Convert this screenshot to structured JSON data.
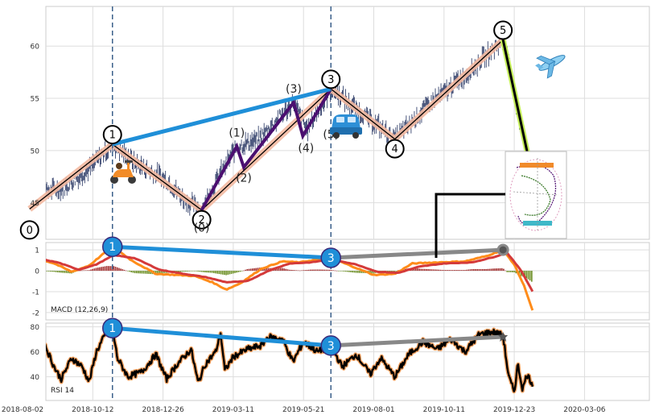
{
  "chart_data": {
    "type": "line",
    "x_ticks": [
      "2018-08-02",
      "2018-10-12",
      "2018-12-26",
      "2019-03-11",
      "2019-05-21",
      "2019-08-01",
      "2019-10-11",
      "2019-12-23",
      "2020-03-06"
    ],
    "price_panel": {
      "y_ticks": [
        45,
        50,
        55,
        60
      ],
      "ylim": [
        41.5,
        63.8
      ],
      "wave_points": [
        {
          "label": "0",
          "x": 0.1,
          "y": 44.4
        },
        {
          "label": "1",
          "x": 1.28,
          "y": 50.6
        },
        {
          "label": "2",
          "x": 2.55,
          "y": 44.3
        },
        {
          "label": "3",
          "x": 4.39,
          "y": 55.9
        },
        {
          "label": "4",
          "x": 5.3,
          "y": 51.1
        },
        {
          "label": "5",
          "x": 6.84,
          "y": 60.6
        }
      ],
      "sub_wave_points": [
        {
          "label": "(0)",
          "x": 2.55,
          "y": 44.3
        },
        {
          "label": "(1)",
          "x": 3.05,
          "y": 50.4
        },
        {
          "label": "(2)",
          "x": 3.15,
          "y": 48.4
        },
        {
          "label": "(3)",
          "x": 3.86,
          "y": 54.6
        },
        {
          "label": "(4)",
          "x": 3.99,
          "y": 51.4
        },
        {
          "label": "(5)",
          "x": 4.39,
          "y": 55.9
        }
      ],
      "wave_5_drop_to": {
        "x": 7.27,
        "y": 47.2
      },
      "divergence_line": {
        "from_label": "1",
        "to_label": "3"
      },
      "vertical_markers_x": [
        1.28,
        4.39
      ],
      "price_series_anchors": [
        {
          "x": 0.0,
          "y": 46.2
        },
        {
          "x": 0.25,
          "y": 45.9
        },
        {
          "x": 0.6,
          "y": 46.5
        },
        {
          "x": 0.95,
          "y": 48.3
        },
        {
          "x": 1.28,
          "y": 50.6
        },
        {
          "x": 1.6,
          "y": 48.8
        },
        {
          "x": 2.05,
          "y": 47.2
        },
        {
          "x": 2.3,
          "y": 45.3
        },
        {
          "x": 2.55,
          "y": 44.3
        },
        {
          "x": 2.8,
          "y": 47.6
        },
        {
          "x": 3.05,
          "y": 50.4
        },
        {
          "x": 3.35,
          "y": 51.0
        },
        {
          "x": 3.86,
          "y": 54.6
        },
        {
          "x": 4.05,
          "y": 52.0
        },
        {
          "x": 4.39,
          "y": 55.9
        },
        {
          "x": 4.75,
          "y": 54.0
        },
        {
          "x": 5.3,
          "y": 51.1
        },
        {
          "x": 5.75,
          "y": 54.2
        },
        {
          "x": 6.35,
          "y": 57.5
        },
        {
          "x": 6.84,
          "y": 60.6
        },
        {
          "x": 6.95,
          "y": 57.5
        },
        {
          "x": 7.05,
          "y": 53.5
        },
        {
          "x": 7.15,
          "y": 51.0
        },
        {
          "x": 7.27,
          "y": 47.2
        }
      ]
    },
    "macd_panel": {
      "label": "MACD (12,26,9)",
      "y_ticks": [
        -2,
        -1,
        0,
        1
      ],
      "ylim": [
        -2.35,
        1.35
      ],
      "macd_anchors": [
        {
          "x": 0.0,
          "y": 0.55
        },
        {
          "x": 0.15,
          "y": 0.65
        },
        {
          "x": 0.45,
          "y": 0.35
        },
        {
          "x": 0.7,
          "y": -0.05
        },
        {
          "x": 0.95,
          "y": 0.25
        },
        {
          "x": 1.2,
          "y": 0.95
        },
        {
          "x": 1.3,
          "y": 1.12
        },
        {
          "x": 1.55,
          "y": 0.5
        },
        {
          "x": 1.9,
          "y": -0.15
        },
        {
          "x": 2.2,
          "y": -0.2
        },
        {
          "x": 2.45,
          "y": -0.25
        },
        {
          "x": 2.7,
          "y": -0.55
        },
        {
          "x": 2.9,
          "y": -0.9
        },
        {
          "x": 3.1,
          "y": -0.6
        },
        {
          "x": 3.4,
          "y": 0.1
        },
        {
          "x": 3.7,
          "y": 0.45
        },
        {
          "x": 3.95,
          "y": 0.4
        },
        {
          "x": 4.2,
          "y": 0.55
        },
        {
          "x": 4.39,
          "y": 0.62
        },
        {
          "x": 4.7,
          "y": 0.2
        },
        {
          "x": 5.0,
          "y": -0.2
        },
        {
          "x": 5.3,
          "y": -0.15
        },
        {
          "x": 5.55,
          "y": 0.35
        },
        {
          "x": 5.9,
          "y": 0.4
        },
        {
          "x": 6.3,
          "y": 0.45
        },
        {
          "x": 6.6,
          "y": 0.7
        },
        {
          "x": 6.84,
          "y": 1.0
        },
        {
          "x": 7.0,
          "y": 0.3
        },
        {
          "x": 7.15,
          "y": -0.8
        },
        {
          "x": 7.27,
          "y": -2.0
        }
      ],
      "signal_anchors": [
        {
          "x": 0.0,
          "y": 0.45
        },
        {
          "x": 0.2,
          "y": 0.6
        },
        {
          "x": 0.5,
          "y": 0.4
        },
        {
          "x": 0.8,
          "y": 0.05
        },
        {
          "x": 1.05,
          "y": 0.3
        },
        {
          "x": 1.3,
          "y": 0.75
        },
        {
          "x": 1.6,
          "y": 0.6
        },
        {
          "x": 1.95,
          "y": 0.05
        },
        {
          "x": 2.3,
          "y": -0.15
        },
        {
          "x": 2.6,
          "y": -0.3
        },
        {
          "x": 2.9,
          "y": -0.55
        },
        {
          "x": 3.2,
          "y": -0.5
        },
        {
          "x": 3.5,
          "y": 0.0
        },
        {
          "x": 3.8,
          "y": 0.35
        },
        {
          "x": 4.1,
          "y": 0.4
        },
        {
          "x": 4.4,
          "y": 0.55
        },
        {
          "x": 4.75,
          "y": 0.3
        },
        {
          "x": 5.05,
          "y": -0.05
        },
        {
          "x": 5.35,
          "y": -0.1
        },
        {
          "x": 5.65,
          "y": 0.2
        },
        {
          "x": 6.0,
          "y": 0.35
        },
        {
          "x": 6.4,
          "y": 0.4
        },
        {
          "x": 6.7,
          "y": 0.65
        },
        {
          "x": 6.9,
          "y": 0.85
        },
        {
          "x": 7.1,
          "y": 0.0
        },
        {
          "x": 7.27,
          "y": -1.05
        }
      ],
      "divergence_line": {
        "from": {
          "label": "1",
          "x": 1.28,
          "y": 1.15
        },
        "to": {
          "label": "3",
          "x": 4.39,
          "y": 0.62
        }
      },
      "extension_to": {
        "x": 6.84,
        "y": 1.0
      }
    },
    "rsi_panel": {
      "label": "RSI 14",
      "y_ticks": [
        40,
        60,
        80
      ],
      "ylim": [
        21,
        83
      ],
      "rsi_anchors": [
        {
          "x": 0.0,
          "y": 72
        },
        {
          "x": 0.05,
          "y": 75
        },
        {
          "x": 0.18,
          "y": 62
        },
        {
          "x": 0.3,
          "y": 68
        },
        {
          "x": 0.45,
          "y": 48
        },
        {
          "x": 0.55,
          "y": 38
        },
        {
          "x": 0.7,
          "y": 55
        },
        {
          "x": 0.85,
          "y": 48
        },
        {
          "x": 0.95,
          "y": 36
        },
        {
          "x": 1.05,
          "y": 60
        },
        {
          "x": 1.2,
          "y": 76
        },
        {
          "x": 1.28,
          "y": 79
        },
        {
          "x": 1.35,
          "y": 55
        },
        {
          "x": 1.5,
          "y": 40
        },
        {
          "x": 1.7,
          "y": 44
        },
        {
          "x": 1.9,
          "y": 58
        },
        {
          "x": 2.05,
          "y": 38
        },
        {
          "x": 2.2,
          "y": 50
        },
        {
          "x": 2.4,
          "y": 62
        },
        {
          "x": 2.5,
          "y": 35
        },
        {
          "x": 2.6,
          "y": 50
        },
        {
          "x": 2.75,
          "y": 60
        },
        {
          "x": 2.82,
          "y": 75
        },
        {
          "x": 2.88,
          "y": 45
        },
        {
          "x": 3.0,
          "y": 56
        },
        {
          "x": 3.2,
          "y": 62
        },
        {
          "x": 3.4,
          "y": 65
        },
        {
          "x": 3.5,
          "y": 72
        },
        {
          "x": 3.7,
          "y": 70
        },
        {
          "x": 3.85,
          "y": 52
        },
        {
          "x": 4.0,
          "y": 68
        },
        {
          "x": 4.2,
          "y": 60
        },
        {
          "x": 4.39,
          "y": 65
        },
        {
          "x": 4.55,
          "y": 48
        },
        {
          "x": 4.75,
          "y": 58
        },
        {
          "x": 4.95,
          "y": 42
        },
        {
          "x": 5.1,
          "y": 55
        },
        {
          "x": 5.3,
          "y": 40
        },
        {
          "x": 5.5,
          "y": 58
        },
        {
          "x": 5.7,
          "y": 68
        },
        {
          "x": 5.9,
          "y": 62
        },
        {
          "x": 6.1,
          "y": 70
        },
        {
          "x": 6.3,
          "y": 60
        },
        {
          "x": 6.5,
          "y": 74
        },
        {
          "x": 6.7,
          "y": 76
        },
        {
          "x": 6.84,
          "y": 73
        },
        {
          "x": 6.92,
          "y": 40
        },
        {
          "x": 7.0,
          "y": 28
        },
        {
          "x": 7.05,
          "y": 50
        },
        {
          "x": 7.12,
          "y": 30
        },
        {
          "x": 7.18,
          "y": 42
        },
        {
          "x": 7.27,
          "y": 33
        }
      ],
      "divergence_line": {
        "from": {
          "label": "1",
          "x": 1.28,
          "y": 79
        },
        "to": {
          "label": "3",
          "x": 4.39,
          "y": 65
        }
      },
      "extension_to": {
        "x": 6.84,
        "y": 72
      }
    }
  },
  "colors": {
    "grid": "#dddddd",
    "axis_text": "#333333",
    "price": "#1e2d5c",
    "wave_shadow": "#f3b9a1",
    "wave_line": "#000000",
    "sub_wave": "#4b0f70",
    "divergence": "#1f8fd8",
    "extension": "#888888",
    "macd": "#ff8c1a",
    "signal": "#d43a3a",
    "hist_pos": "#a23030",
    "hist_neg": "#6b8e23",
    "rsi": "#000000",
    "rsi_glow": "#f4a261",
    "v_marker": "#3a5f8a",
    "wave5_drop": "#c5ef5a"
  },
  "icons": [
    "scooter-icon",
    "car-icon",
    "airplane-icon",
    "ring-chart-thumbnail"
  ]
}
